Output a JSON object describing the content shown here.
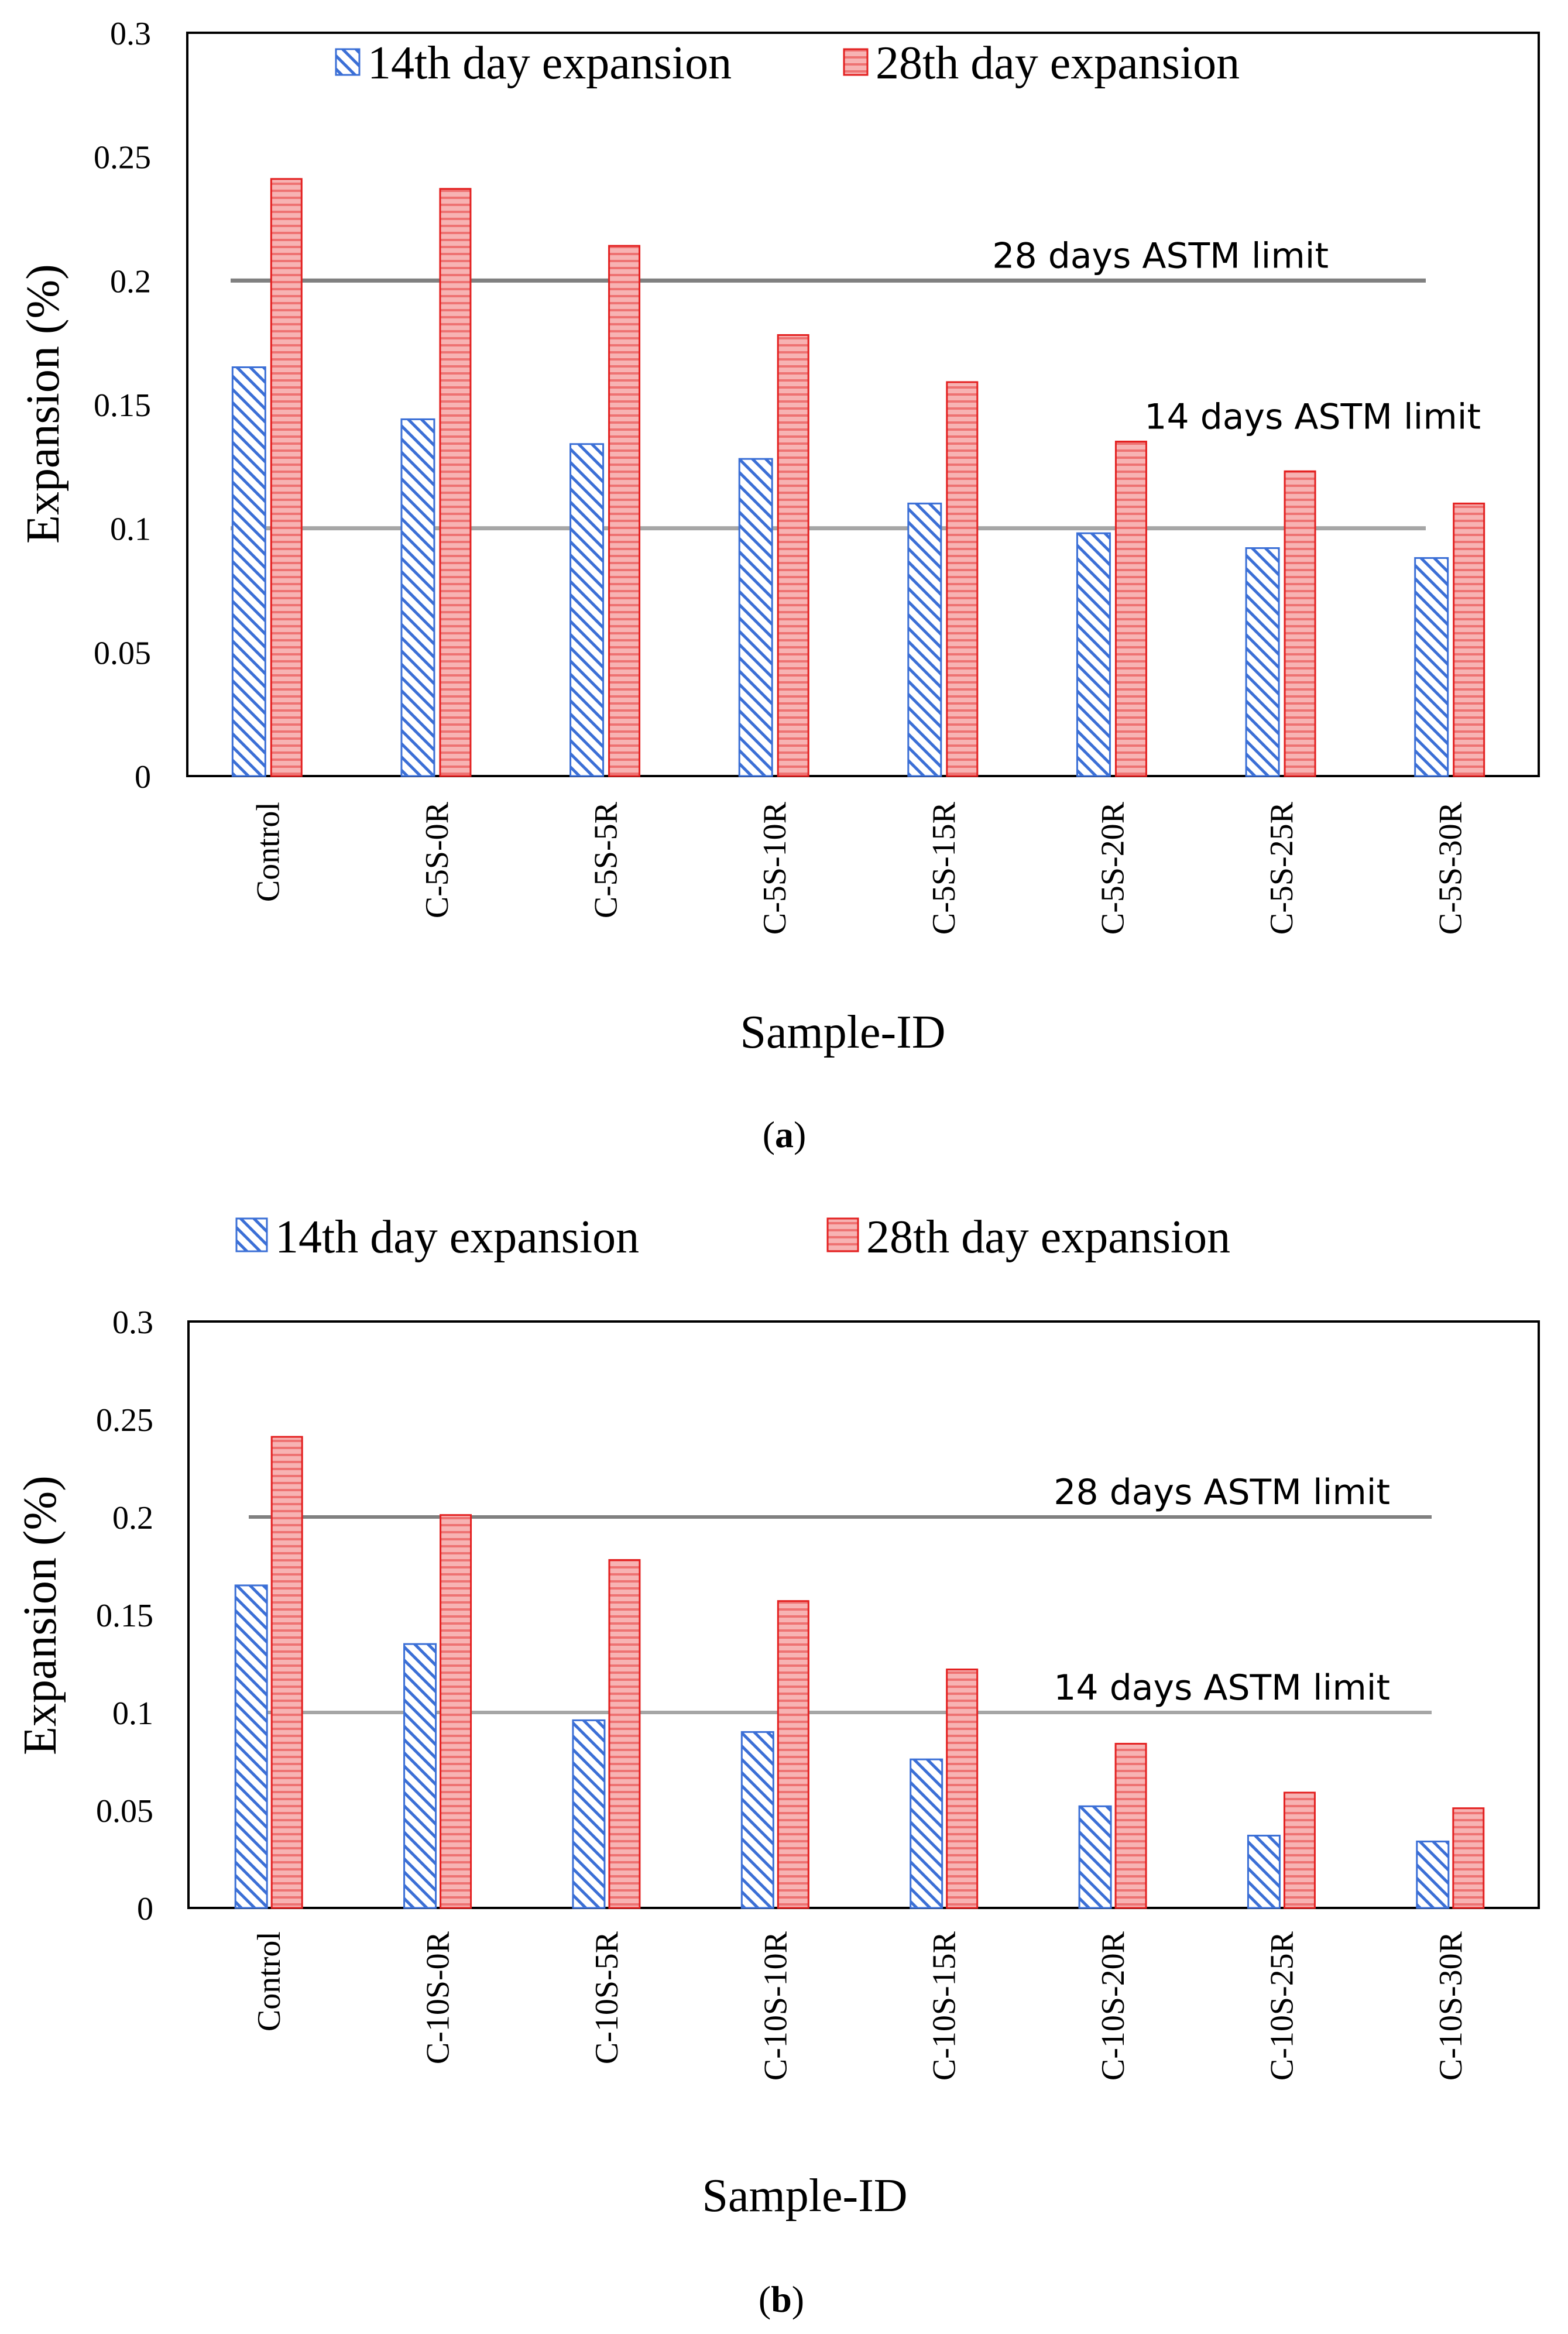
{
  "colors": {
    "series_14": "#3b6fd6",
    "series_28_fill": "#f49a9a",
    "series_28_stroke": "#e32020",
    "limit_28": "#808080",
    "limit_14": "#a6a6a6",
    "frame": "#000000"
  },
  "chart_data": [
    {
      "type": "bar",
      "panel_label": "a",
      "xlabel": "Sample-ID",
      "ylabel": "Expansion (%)",
      "ylim": [
        0,
        0.3
      ],
      "yticks": [
        "0",
        "0.05",
        "0.1",
        "0.15",
        "0.2",
        "0.25",
        "0.3"
      ],
      "categories": [
        "Control",
        "C-5S-0R",
        "C-5S-5R",
        "C-5S-10R",
        "C-5S-15R",
        "C-5S-20R",
        "C-5S-25R",
        "C-5S-30R"
      ],
      "series": [
        {
          "name": "14th day expansion",
          "values": [
            0.165,
            0.144,
            0.134,
            0.128,
            0.11,
            0.098,
            0.092,
            0.088
          ]
        },
        {
          "name": "28th day expansion",
          "values": [
            0.241,
            0.237,
            0.214,
            0.178,
            0.159,
            0.135,
            0.123,
            0.11
          ]
        }
      ],
      "reference_lines": [
        {
          "label": "28 days ASTM limit",
          "value": 0.2
        },
        {
          "label": "14 days ASTM limit",
          "value": 0.1
        }
      ],
      "legend_position": "top"
    },
    {
      "type": "bar",
      "panel_label": "b",
      "xlabel": "Sample-ID",
      "ylabel": "Expansion (%)",
      "ylim": [
        0,
        0.3
      ],
      "yticks": [
        "0",
        "0.05",
        "0.1",
        "0.15",
        "0.2",
        "0.25",
        "0.3"
      ],
      "categories": [
        "Control",
        "C-10S-0R",
        "C-10S-5R",
        "C-10S-10R",
        "C-10S-15R",
        "C-10S-20R",
        "C-10S-25R",
        "C-10S-30R"
      ],
      "series": [
        {
          "name": "14th day expansion",
          "values": [
            0.165,
            0.135,
            0.096,
            0.09,
            0.076,
            0.052,
            0.037,
            0.034
          ]
        },
        {
          "name": "28th day expansion",
          "values": [
            0.241,
            0.201,
            0.178,
            0.157,
            0.122,
            0.084,
            0.059,
            0.051
          ]
        }
      ],
      "reference_lines": [
        {
          "label": "28 days ASTM limit",
          "value": 0.2
        },
        {
          "label": "14 days ASTM limit",
          "value": 0.1
        }
      ],
      "legend_position": "above"
    }
  ]
}
